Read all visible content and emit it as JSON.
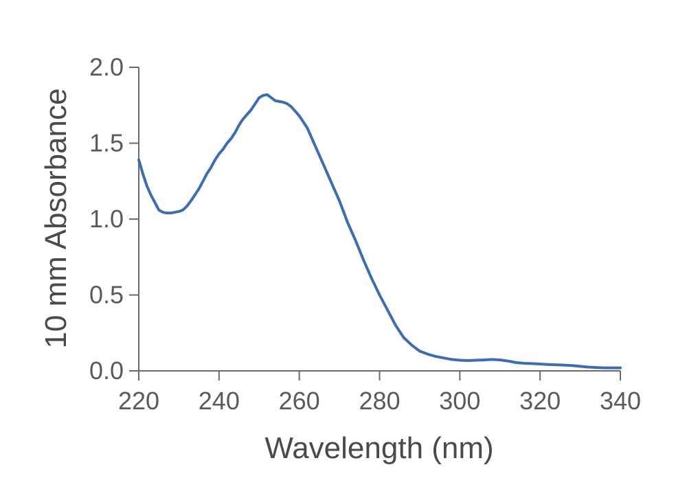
{
  "chart_data": {
    "type": "line",
    "title": "",
    "xlabel": "Wavelength (nm)",
    "ylabel": "10 mm Absorbance",
    "xlim": [
      220,
      340
    ],
    "ylim": [
      0,
      2.0
    ],
    "xticks": [
      220,
      240,
      260,
      280,
      300,
      320,
      340
    ],
    "xtick_labels": [
      "220",
      "240",
      "260",
      "280",
      "300",
      "320",
      "340"
    ],
    "yticks": [
      0.0,
      0.5,
      1.0,
      1.5,
      2.0
    ],
    "ytick_labels": [
      "0.0",
      "0.5",
      "1.0",
      "1.5",
      "2.0"
    ],
    "grid": false,
    "series": [
      {
        "color": "#3a6db4",
        "x": [
          220,
          221,
          222,
          223,
          224,
          225,
          226,
          227,
          228,
          229,
          230,
          231,
          232,
          233,
          234,
          235,
          236,
          237,
          238,
          239,
          240,
          241,
          242,
          243,
          244,
          245,
          246,
          247,
          248,
          249,
          250,
          251,
          252,
          253,
          254,
          255,
          256,
          257,
          258,
          259,
          260,
          261,
          262,
          263,
          264,
          265,
          266,
          267,
          268,
          269,
          270,
          272,
          274,
          276,
          278,
          280,
          282,
          284,
          286,
          288,
          290,
          292,
          294,
          296,
          298,
          300,
          302,
          304,
          306,
          308,
          310,
          312,
          314,
          316,
          318,
          320,
          322,
          324,
          326,
          328,
          330,
          332,
          334,
          336,
          338,
          340
        ],
        "y": [
          1.39,
          1.3,
          1.22,
          1.16,
          1.11,
          1.06,
          1.045,
          1.04,
          1.04,
          1.045,
          1.05,
          1.06,
          1.085,
          1.12,
          1.16,
          1.2,
          1.25,
          1.3,
          1.34,
          1.39,
          1.43,
          1.46,
          1.5,
          1.53,
          1.57,
          1.62,
          1.66,
          1.69,
          1.72,
          1.76,
          1.8,
          1.815,
          1.82,
          1.8,
          1.78,
          1.775,
          1.77,
          1.76,
          1.74,
          1.71,
          1.68,
          1.64,
          1.6,
          1.54,
          1.48,
          1.42,
          1.36,
          1.3,
          1.24,
          1.18,
          1.12,
          0.98,
          0.86,
          0.73,
          0.61,
          0.5,
          0.4,
          0.3,
          0.22,
          0.17,
          0.13,
          0.11,
          0.095,
          0.085,
          0.075,
          0.07,
          0.068,
          0.07,
          0.072,
          0.075,
          0.072,
          0.065,
          0.055,
          0.05,
          0.048,
          0.045,
          0.042,
          0.04,
          0.038,
          0.035,
          0.03,
          0.025,
          0.022,
          0.02,
          0.02,
          0.02
        ]
      }
    ]
  }
}
